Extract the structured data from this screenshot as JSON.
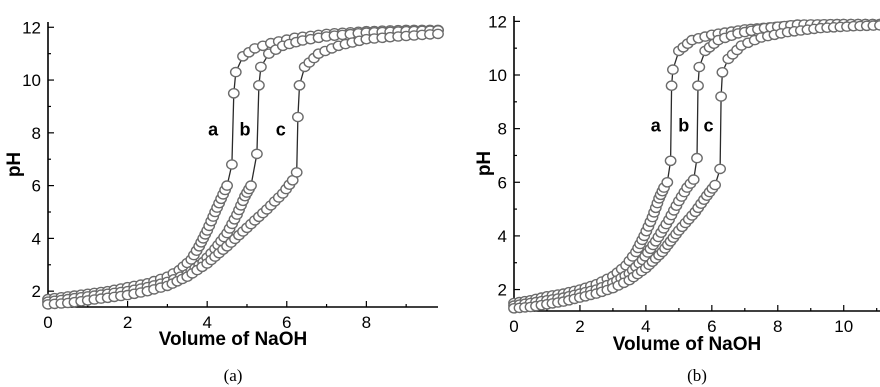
{
  "chart_data": [
    {
      "type": "scatter",
      "caption": "(a)",
      "xlabel": "Volume of NaOH",
      "ylabel": "pH",
      "xlim": [
        0,
        9.8
      ],
      "ylim": [
        1.4,
        12.2
      ],
      "xticks": [
        0,
        2,
        4,
        6,
        8
      ],
      "yticks": [
        2,
        4,
        6,
        8,
        10,
        12
      ],
      "curve_labels": [
        {
          "text": "a",
          "x": 4.15,
          "y": 7.9
        },
        {
          "text": "b",
          "x": 4.95,
          "y": 7.9
        },
        {
          "text": "c",
          "x": 5.85,
          "y": 7.9
        }
      ],
      "series": [
        {
          "pre": [
            [
              0,
              1.7
            ],
            [
              0.5,
              1.8
            ],
            [
              1,
              1.9
            ],
            [
              1.5,
              2.0
            ],
            [
              2,
              2.15
            ],
            [
              2.5,
              2.3
            ],
            [
              3,
              2.55
            ],
            [
              3.3,
              2.8
            ],
            [
              3.6,
              3.2
            ],
            [
              3.8,
              3.7
            ],
            [
              4.0,
              4.3
            ],
            [
              4.2,
              5.0
            ],
            [
              4.35,
              5.5
            ],
            [
              4.5,
              6.0
            ]
          ],
          "jump": [
            [
              4.62,
              6.8
            ],
            [
              4.67,
              9.5
            ],
            [
              4.72,
              10.3
            ]
          ],
          "post": [
            [
              4.9,
              10.9
            ],
            [
              5.2,
              11.2
            ],
            [
              5.6,
              11.4
            ],
            [
              6.2,
              11.6
            ],
            [
              7,
              11.75
            ],
            [
              8,
              11.85
            ],
            [
              9,
              11.9
            ],
            [
              9.8,
              11.9
            ]
          ]
        },
        {
          "pre": [
            [
              0,
              1.6
            ],
            [
              0.5,
              1.7
            ],
            [
              1,
              1.8
            ],
            [
              1.5,
              1.9
            ],
            [
              2,
              2.0
            ],
            [
              2.5,
              2.15
            ],
            [
              3,
              2.35
            ],
            [
              3.5,
              2.65
            ],
            [
              3.9,
              3.1
            ],
            [
              4.2,
              3.6
            ],
            [
              4.5,
              4.2
            ],
            [
              4.75,
              4.9
            ],
            [
              4.95,
              5.6
            ],
            [
              5.1,
              6.0
            ]
          ],
          "jump": [
            [
              5.25,
              7.2
            ],
            [
              5.3,
              9.8
            ],
            [
              5.35,
              10.5
            ]
          ],
          "post": [
            [
              5.55,
              11.0
            ],
            [
              5.9,
              11.3
            ],
            [
              6.4,
              11.5
            ],
            [
              7,
              11.65
            ],
            [
              8,
              11.8
            ],
            [
              9,
              11.85
            ],
            [
              9.8,
              11.88
            ]
          ]
        },
        {
          "pre": [
            [
              0,
              1.5
            ],
            [
              0.5,
              1.55
            ],
            [
              1,
              1.65
            ],
            [
              1.5,
              1.75
            ],
            [
              2,
              1.85
            ],
            [
              2.5,
              2.0
            ],
            [
              3,
              2.2
            ],
            [
              3.5,
              2.55
            ],
            [
              4,
              3.05
            ],
            [
              4.5,
              3.7
            ],
            [
              5,
              4.4
            ],
            [
              5.5,
              5.1
            ],
            [
              5.9,
              5.7
            ],
            [
              6.15,
              6.2
            ]
          ],
          "jump": [
            [
              6.25,
              6.5
            ],
            [
              6.28,
              8.6
            ],
            [
              6.32,
              9.8
            ]
          ],
          "post": [
            [
              6.45,
              10.5
            ],
            [
              6.8,
              11.0
            ],
            [
              7.3,
              11.3
            ],
            [
              8,
              11.55
            ],
            [
              8.8,
              11.65
            ],
            [
              9.8,
              11.75
            ]
          ]
        }
      ]
    },
    {
      "type": "scatter",
      "caption": "(b)",
      "xlabel": "Volume of NaOH",
      "ylabel": "pH",
      "xlim": [
        0,
        11.1
      ],
      "ylim": [
        1.2,
        12.2
      ],
      "xticks": [
        0,
        2,
        4,
        6,
        8,
        10
      ],
      "yticks": [
        2,
        4,
        6,
        8,
        10,
        12
      ],
      "curve_labels": [
        {
          "text": "a",
          "x": 4.3,
          "y": 7.9
        },
        {
          "text": "b",
          "x": 5.15,
          "y": 7.9
        },
        {
          "text": "c",
          "x": 5.9,
          "y": 7.9
        }
      ],
      "series": [
        {
          "pre": [
            [
              0,
              1.5
            ],
            [
              0.5,
              1.6
            ],
            [
              1,
              1.75
            ],
            [
              1.5,
              1.85
            ],
            [
              2,
              2.0
            ],
            [
              2.5,
              2.2
            ],
            [
              3,
              2.5
            ],
            [
              3.4,
              2.9
            ],
            [
              3.7,
              3.4
            ],
            [
              3.95,
              4.0
            ],
            [
              4.2,
              4.7
            ],
            [
              4.4,
              5.4
            ],
            [
              4.55,
              5.8
            ],
            [
              4.65,
              6.0
            ]
          ],
          "jump": [
            [
              4.75,
              6.8
            ],
            [
              4.78,
              9.6
            ],
            [
              4.82,
              10.2
            ]
          ],
          "post": [
            [
              5.0,
              10.9
            ],
            [
              5.4,
              11.3
            ],
            [
              6,
              11.5
            ],
            [
              7,
              11.7
            ],
            [
              8.5,
              11.85
            ],
            [
              10,
              11.9
            ],
            [
              11.1,
              11.9
            ]
          ]
        },
        {
          "pre": [
            [
              0,
              1.4
            ],
            [
              0.5,
              1.5
            ],
            [
              1,
              1.6
            ],
            [
              1.5,
              1.7
            ],
            [
              2,
              1.85
            ],
            [
              2.5,
              2.0
            ],
            [
              3,
              2.25
            ],
            [
              3.5,
              2.6
            ],
            [
              3.9,
              3.1
            ],
            [
              4.3,
              3.8
            ],
            [
              4.7,
              4.6
            ],
            [
              5.0,
              5.3
            ],
            [
              5.25,
              5.8
            ],
            [
              5.45,
              6.1
            ]
          ],
          "jump": [
            [
              5.55,
              6.9
            ],
            [
              5.58,
              9.6
            ],
            [
              5.62,
              10.3
            ]
          ],
          "post": [
            [
              5.8,
              10.9
            ],
            [
              6.2,
              11.3
            ],
            [
              6.8,
              11.55
            ],
            [
              7.6,
              11.75
            ],
            [
              8.6,
              11.88
            ],
            [
              10,
              11.9
            ],
            [
              11.1,
              11.9
            ]
          ]
        },
        {
          "pre": [
            [
              0,
              1.3
            ],
            [
              0.5,
              1.35
            ],
            [
              1,
              1.45
            ],
            [
              1.5,
              1.55
            ],
            [
              2,
              1.7
            ],
            [
              2.5,
              1.85
            ],
            [
              3,
              2.05
            ],
            [
              3.5,
              2.35
            ],
            [
              4,
              2.8
            ],
            [
              4.5,
              3.4
            ],
            [
              5,
              4.2
            ],
            [
              5.5,
              4.9
            ],
            [
              5.85,
              5.5
            ],
            [
              6.1,
              5.9
            ]
          ],
          "jump": [
            [
              6.25,
              6.5
            ],
            [
              6.28,
              9.2
            ],
            [
              6.32,
              10.1
            ]
          ],
          "post": [
            [
              6.5,
              10.6
            ],
            [
              6.9,
              11.1
            ],
            [
              7.5,
              11.4
            ],
            [
              8.3,
              11.6
            ],
            [
              9.3,
              11.75
            ],
            [
              10.3,
              11.82
            ],
            [
              11.1,
              11.85
            ]
          ]
        }
      ]
    }
  ]
}
